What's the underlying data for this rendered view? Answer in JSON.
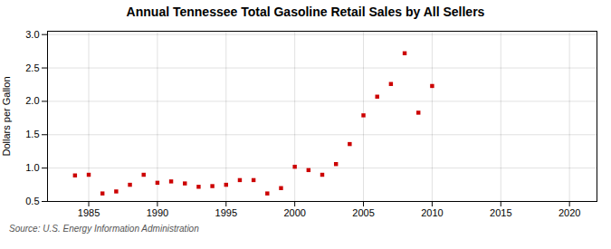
{
  "chart_data": {
    "type": "scatter",
    "title": "Annual Tennessee Total Gasoline Retail Sales by All Sellers",
    "ylabel": "Dollars per Gallon",
    "annotations": [
      "Source: U.S. Energy Information Administration"
    ],
    "x": [
      1984,
      1985,
      1986,
      1987,
      1988,
      1989,
      1990,
      1991,
      1992,
      1993,
      1994,
      1995,
      1996,
      1997,
      1998,
      1999,
      2000,
      2001,
      2002,
      2003,
      2004,
      2005,
      2006,
      2007,
      2008,
      2009,
      2010
    ],
    "values": [
      0.89,
      0.9,
      0.62,
      0.65,
      0.75,
      0.9,
      0.78,
      0.8,
      0.77,
      0.72,
      0.73,
      0.75,
      0.82,
      0.82,
      0.62,
      0.7,
      1.02,
      0.97,
      0.9,
      1.06,
      1.36,
      1.79,
      2.07,
      2.26,
      2.72,
      1.83,
      2.23
    ],
    "color": "#cc0000",
    "marker": "square",
    "xlim": [
      1982,
      2022
    ],
    "ylim": [
      0.5,
      3.05
    ],
    "xticks": [
      1985,
      1990,
      1995,
      2000,
      2005,
      2010,
      2015,
      2020
    ],
    "yticks": [
      0.5,
      {
        "value": 1.0,
        "label": "1.0"
      },
      1.5,
      {
        "value": 2.0,
        "label": "2.0"
      },
      2.5,
      {
        "value": 3.0,
        "label": "3.0"
      }
    ],
    "grid": true
  }
}
